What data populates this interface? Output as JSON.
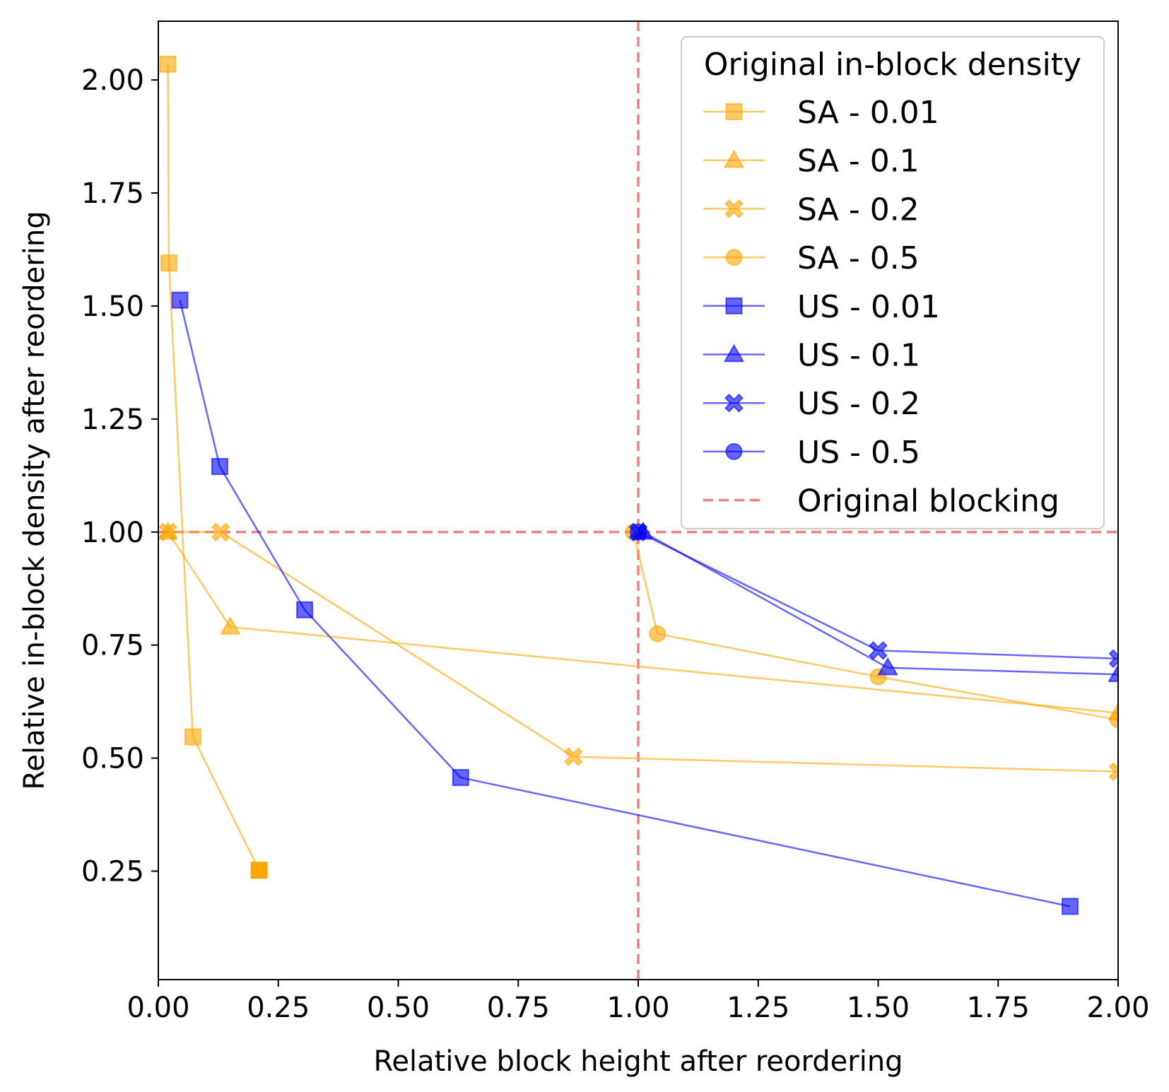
{
  "chart_data": {
    "type": "line",
    "title": "",
    "xlabel": "Relative block height after reordering",
    "ylabel": "Relative in-block density after reordering",
    "xlim": [
      0,
      2
    ],
    "ylim": [
      0.01,
      2.13
    ],
    "xticks": [
      "0.00",
      "0.25",
      "0.50",
      "0.75",
      "1.00",
      "1.25",
      "1.50",
      "1.75",
      "2.00"
    ],
    "yticks": [
      "0.25",
      "0.50",
      "0.75",
      "1.00",
      "1.25",
      "1.50",
      "1.75",
      "2.00"
    ],
    "grid": false,
    "legend": {
      "title": "Original in-block density",
      "placement": "top-right"
    },
    "series": [
      {
        "name": "SA - 0.01",
        "color": "#FFA500",
        "marker": "square",
        "points": [
          [
            0.02,
            2.035
          ],
          [
            0.022,
            1.595
          ],
          [
            0.072,
            0.547
          ],
          [
            0.21,
            0.252
          ]
        ]
      },
      {
        "name": "SA - 0.1",
        "color": "#FFA500",
        "marker": "triangle",
        "points": [
          [
            0.02,
            1.0
          ],
          [
            0.15,
            0.79
          ],
          [
            2.0,
            0.6
          ]
        ]
      },
      {
        "name": "SA - 0.2",
        "color": "#FFA500",
        "marker": "x",
        "points": [
          [
            0.02,
            1.0
          ],
          [
            0.13,
            1.0
          ],
          [
            0.865,
            0.503
          ],
          [
            2.0,
            0.47
          ]
        ]
      },
      {
        "name": "SA - 0.5",
        "color": "#FFA500",
        "marker": "circle",
        "points": [
          [
            0.99,
            1.0
          ],
          [
            1.04,
            0.775
          ],
          [
            1.5,
            0.68
          ],
          [
            2.0,
            0.585
          ]
        ]
      },
      {
        "name": "US - 0.01",
        "color": "#0000FF",
        "marker": "square",
        "points": [
          [
            0.045,
            1.513
          ],
          [
            0.128,
            1.145
          ],
          [
            0.305,
            0.828
          ],
          [
            0.63,
            0.457
          ],
          [
            1.9,
            0.172
          ]
        ]
      },
      {
        "name": "US - 0.1",
        "color": "#0000FF",
        "marker": "triangle",
        "points": [
          [
            1.01,
            1.0
          ],
          [
            1.52,
            0.7
          ],
          [
            2.0,
            0.685
          ]
        ]
      },
      {
        "name": "US - 0.2",
        "color": "#0000FF",
        "marker": "x",
        "points": [
          [
            1.0,
            1.0
          ],
          [
            1.5,
            0.738
          ],
          [
            2.0,
            0.72
          ]
        ]
      },
      {
        "name": "US - 0.5",
        "color": "#0000FF",
        "marker": "circle",
        "points": [
          [
            1.0,
            1.0
          ]
        ]
      }
    ],
    "reference_lines": {
      "name": "Original blocking",
      "color": "#F08080",
      "style": "dashed",
      "x": 1.0,
      "y": 1.0
    },
    "marker_overrides": [
      {
        "series": "SA - 0.01",
        "point_index": 3,
        "opaque": true
      }
    ]
  }
}
